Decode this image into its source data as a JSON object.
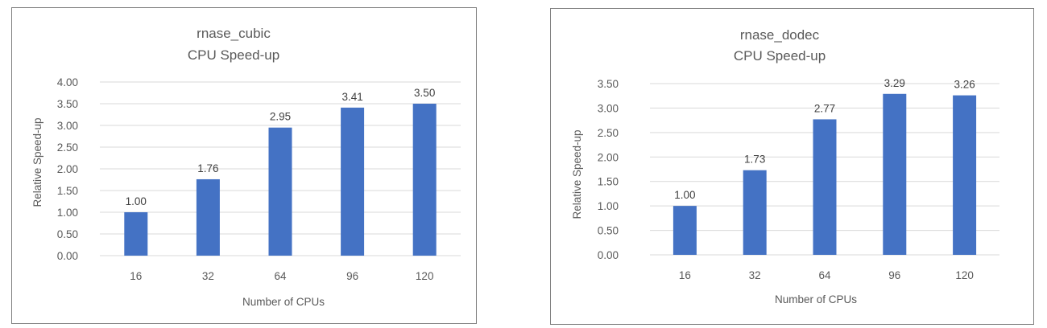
{
  "chart_data": [
    {
      "type": "bar",
      "title": "rnase_cubic",
      "subtitle": "CPU Speed-up",
      "xlabel": "Number of CPUs",
      "ylabel": "Relative Speed-up",
      "categories": [
        "16",
        "32",
        "64",
        "96",
        "120"
      ],
      "values": [
        1.0,
        1.76,
        2.95,
        3.41,
        3.5
      ],
      "data_labels": [
        "1.00",
        "1.76",
        "2.95",
        "3.41",
        "3.50"
      ],
      "ylim": [
        0,
        4.0
      ],
      "yticks": [
        "0.00",
        "0.50",
        "1.00",
        "1.50",
        "2.00",
        "2.50",
        "3.00",
        "3.50",
        "4.00"
      ],
      "grid": true,
      "bar_color": "#4472c4"
    },
    {
      "type": "bar",
      "title": "rnase_dodec",
      "subtitle": "CPU Speed-up",
      "xlabel": "Number of CPUs",
      "ylabel": "Relative Speed-up",
      "categories": [
        "16",
        "32",
        "64",
        "96",
        "120"
      ],
      "values": [
        1.0,
        1.73,
        2.77,
        3.29,
        3.26
      ],
      "data_labels": [
        "1.00",
        "1.73",
        "2.77",
        "3.29",
        "3.26"
      ],
      "ylim": [
        0,
        3.5
      ],
      "yticks": [
        "0.00",
        "0.50",
        "1.00",
        "1.50",
        "2.00",
        "2.50",
        "3.00",
        "3.50"
      ],
      "grid": true,
      "bar_color": "#4472c4"
    }
  ]
}
